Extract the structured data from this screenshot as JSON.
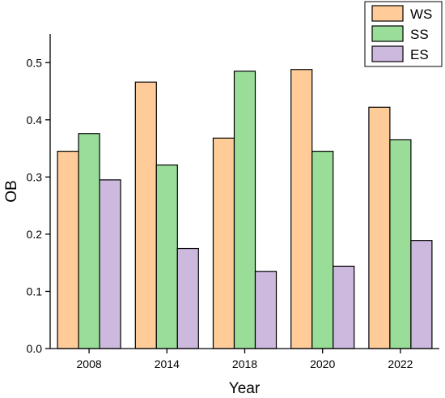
{
  "chart_data": {
    "type": "bar",
    "categories": [
      "2008",
      "2014",
      "2018",
      "2020",
      "2022"
    ],
    "series": [
      {
        "name": "WS",
        "color": "#FFCC99",
        "values": [
          0.345,
          0.466,
          0.368,
          0.488,
          0.422
        ]
      },
      {
        "name": "SS",
        "color": "#99DD99",
        "values": [
          0.376,
          0.321,
          0.485,
          0.345,
          0.365
        ]
      },
      {
        "name": "ES",
        "color": "#CDB9DE",
        "values": [
          0.295,
          0.175,
          0.135,
          0.144,
          0.189
        ]
      }
    ],
    "xlabel": "Year",
    "ylabel": "OB",
    "ylim": [
      0,
      0.55
    ],
    "yticks": [
      "0.0",
      "0.1",
      "0.2",
      "0.3",
      "0.4",
      "0.5"
    ],
    "legend_position": "top-right",
    "grid": false
  }
}
